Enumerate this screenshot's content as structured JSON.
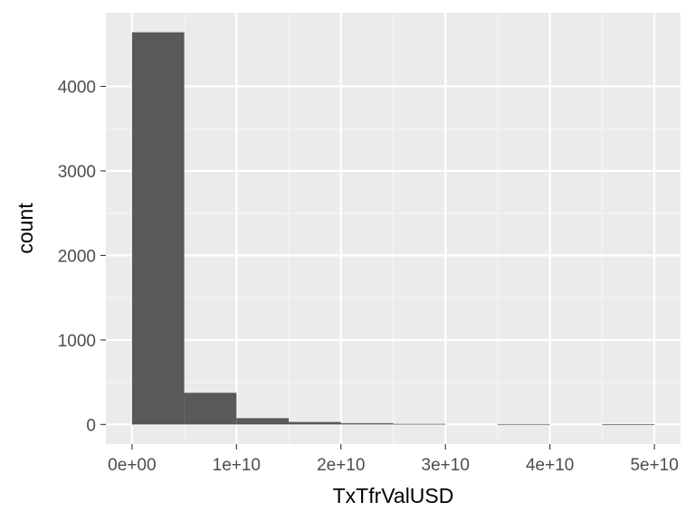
{
  "chart_data": {
    "type": "bar",
    "subtype": "histogram",
    "xlabel": "TxTfrValUSD",
    "ylabel": "count",
    "bin_width": 5000000000,
    "bins": [
      {
        "x0": 0,
        "x1": 5000000000,
        "count": 4640
      },
      {
        "x0": 5000000000,
        "x1": 10000000000,
        "count": 375
      },
      {
        "x0": 10000000000,
        "x1": 15000000000,
        "count": 75
      },
      {
        "x0": 15000000000,
        "x1": 20000000000,
        "count": 30
      },
      {
        "x0": 20000000000,
        "x1": 25000000000,
        "count": 15
      },
      {
        "x0": 25000000000,
        "x1": 30000000000,
        "count": 7
      },
      {
        "x0": 30000000000,
        "x1": 35000000000,
        "count": 0
      },
      {
        "x0": 35000000000,
        "x1": 40000000000,
        "count": 5
      },
      {
        "x0": 40000000000,
        "x1": 45000000000,
        "count": 0
      },
      {
        "x0": 45000000000,
        "x1": 50000000000,
        "count": 4
      }
    ],
    "xlim": [
      -2500000000,
      52500000000
    ],
    "ylim": [
      -232,
      4872
    ],
    "x_ticks": [
      {
        "value": 0,
        "label": "0e+00"
      },
      {
        "value": 10000000000,
        "label": "1e+10"
      },
      {
        "value": 20000000000,
        "label": "2e+10"
      },
      {
        "value": 30000000000,
        "label": "3e+10"
      },
      {
        "value": 40000000000,
        "label": "4e+10"
      },
      {
        "value": 50000000000,
        "label": "5e+10"
      }
    ],
    "y_ticks": [
      {
        "value": 0,
        "label": "0"
      },
      {
        "value": 1000,
        "label": "1000"
      },
      {
        "value": 2000,
        "label": "2000"
      },
      {
        "value": 3000,
        "label": "3000"
      },
      {
        "value": 4000,
        "label": "4000"
      }
    ],
    "grid": true,
    "colors": {
      "panel_background": "#ebebeb",
      "grid_major": "#ffffff",
      "grid_minor": "#f5f5f5",
      "bar_fill": "#595959",
      "tick_text": "#4d4d4d",
      "tick_mark": "#333333"
    }
  }
}
